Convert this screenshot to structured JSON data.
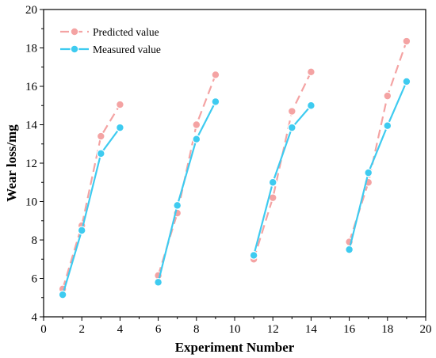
{
  "chart_data": {
    "type": "line",
    "title": "",
    "xlabel": "Experiment Number",
    "ylabel": "Wear loss/mg",
    "xlim": [
      0,
      20
    ],
    "ylim": [
      4,
      20
    ],
    "xticks": [
      0,
      2,
      4,
      6,
      8,
      10,
      12,
      14,
      16,
      18,
      20
    ],
    "yticks": [
      4,
      6,
      8,
      10,
      12,
      14,
      16,
      18,
      20
    ],
    "grid": false,
    "legend_position": "top-left",
    "series": [
      {
        "name": "Predicted value",
        "color": "#f4a3a3",
        "line_style": "dashed",
        "groups": [
          [
            {
              "x": 1,
              "y": 5.45
            },
            {
              "x": 2,
              "y": 8.75
            },
            {
              "x": 3,
              "y": 13.4
            },
            {
              "x": 4,
              "y": 15.05
            }
          ],
          [
            {
              "x": 6,
              "y": 6.15
            },
            {
              "x": 7,
              "y": 9.4
            },
            {
              "x": 8,
              "y": 14.0
            },
            {
              "x": 9,
              "y": 16.6
            }
          ],
          [
            {
              "x": 11,
              "y": 7.0
            },
            {
              "x": 12,
              "y": 10.2
            },
            {
              "x": 13,
              "y": 14.7
            },
            {
              "x": 14,
              "y": 16.75
            }
          ],
          [
            {
              "x": 16,
              "y": 7.9
            },
            {
              "x": 17,
              "y": 11.0
            },
            {
              "x": 18,
              "y": 15.5
            },
            {
              "x": 19,
              "y": 18.35
            }
          ]
        ]
      },
      {
        "name": "Measured value",
        "color": "#3ecbf0",
        "line_style": "solid",
        "groups": [
          [
            {
              "x": 1,
              "y": 5.15
            },
            {
              "x": 2,
              "y": 8.5
            },
            {
              "x": 3,
              "y": 12.5
            },
            {
              "x": 4,
              "y": 13.85
            }
          ],
          [
            {
              "x": 6,
              "y": 5.8
            },
            {
              "x": 7,
              "y": 9.8
            },
            {
              "x": 8,
              "y": 13.25
            },
            {
              "x": 9,
              "y": 15.2
            }
          ],
          [
            {
              "x": 11,
              "y": 7.2
            },
            {
              "x": 12,
              "y": 11.0
            },
            {
              "x": 13,
              "y": 13.85
            },
            {
              "x": 14,
              "y": 15.0
            }
          ],
          [
            {
              "x": 16,
              "y": 7.5
            },
            {
              "x": 17,
              "y": 11.5
            },
            {
              "x": 18,
              "y": 13.95
            },
            {
              "x": 19,
              "y": 16.25
            }
          ]
        ]
      }
    ]
  }
}
